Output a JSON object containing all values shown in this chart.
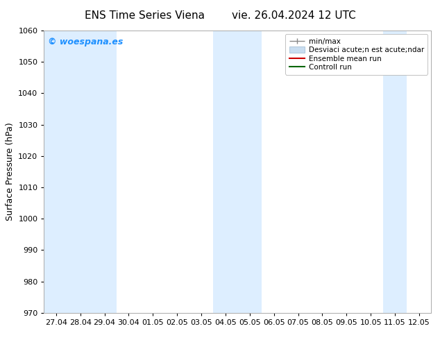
{
  "title_left": "ENS Time Series Viena",
  "title_right": "vie. 26.04.2024 12 UTC",
  "ylabel": "Surface Pressure (hPa)",
  "ylim": [
    970,
    1060
  ],
  "yticks": [
    970,
    980,
    990,
    1000,
    1010,
    1020,
    1030,
    1040,
    1050,
    1060
  ],
  "xtick_labels": [
    "27.04",
    "28.04",
    "29.04",
    "30.04",
    "01.05",
    "02.05",
    "03.05",
    "04.05",
    "05.05",
    "06.05",
    "07.05",
    "08.05",
    "09.05",
    "10.05",
    "11.05",
    "12.05"
  ],
  "background_color": "#ffffff",
  "plot_bg_color": "#ffffff",
  "shaded_columns_x": [
    0,
    1,
    2,
    7,
    8,
    14
  ],
  "shaded_color": "#ddeeff",
  "watermark_text": "© woespana.es",
  "watermark_color": "#1e90ff",
  "legend_entry_0": "min/max",
  "legend_entry_1": "Desviaci acute;n est acute;ndar",
  "legend_entry_2": "Ensemble mean run",
  "legend_entry_3": "Controll run",
  "title_fontsize": 11,
  "tick_fontsize": 8,
  "ylabel_fontsize": 9
}
